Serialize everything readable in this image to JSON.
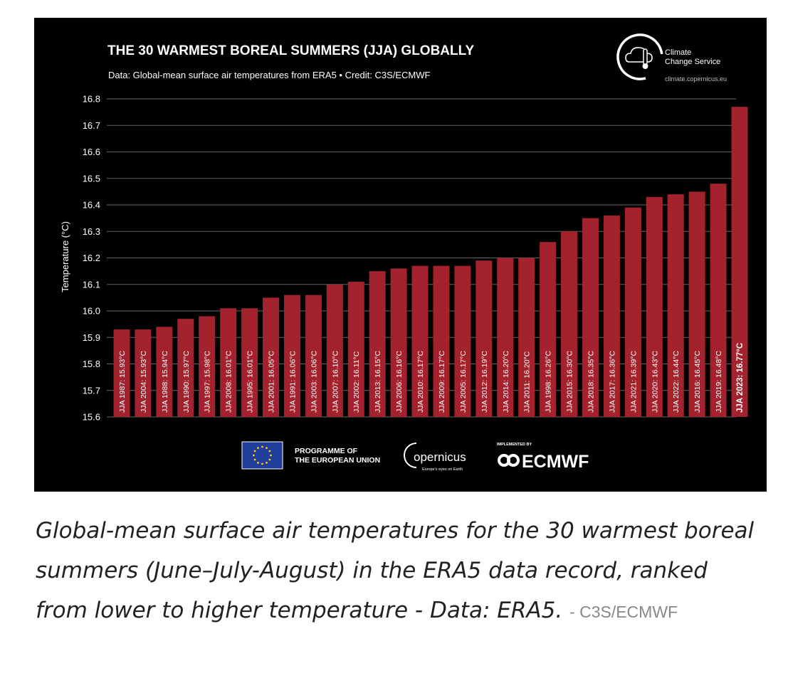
{
  "chart_data": {
    "type": "bar",
    "title": "THE 30 WARMEST BOREAL SUMMERS (JJA) GLOBALLY",
    "subtitle": "Data: Global-mean surface air temperatures from ERA5 • Credit: C3S/ECMWF",
    "ylabel": "Temperature (°C)",
    "xlabel": "",
    "ylim": [
      15.6,
      16.8
    ],
    "yticks": [
      "15.6",
      "15.7",
      "15.8",
      "15.9",
      "16.0",
      "16.1",
      "16.2",
      "16.3",
      "16.4",
      "16.5",
      "16.6",
      "16.7",
      "16.8"
    ],
    "grid": true,
    "bar_color": "#a3222d",
    "categories": [
      "JJA 1987",
      "JJA 2004",
      "JJA 1988",
      "JJA 1990",
      "JJA 1997",
      "JJA 2008",
      "JJA 1995",
      "JJA 2001",
      "JJA 1991",
      "JJA 2003",
      "JJA 2007",
      "JJA 2002",
      "JJA 2013",
      "JJA 2006",
      "JJA 2010",
      "JJA 2009",
      "JJA 2005",
      "JJA 2012",
      "JJA 2014",
      "JJA 2011",
      "JJA 1998",
      "JJA 2015",
      "JJA 2018",
      "JJA 2017",
      "JJA 2021",
      "JJA 2020",
      "JJA 2022",
      "JJA 2016",
      "JJA 2019",
      "JJA 2023"
    ],
    "values": [
      15.93,
      15.93,
      15.94,
      15.97,
      15.98,
      16.01,
      16.01,
      16.05,
      16.06,
      16.06,
      16.1,
      16.11,
      16.15,
      16.16,
      16.17,
      16.17,
      16.17,
      16.19,
      16.2,
      16.2,
      16.26,
      16.3,
      16.35,
      16.36,
      16.39,
      16.43,
      16.44,
      16.45,
      16.48,
      16.77
    ],
    "bar_labels": [
      "JJA 1987: 15.93°C",
      "JJA 2004: 15.93°C",
      "JJA 1988: 15.94°C",
      "JJA 1990: 15.97°C",
      "JJA 1997: 15.98°C",
      "JJA 2008: 16.01°C",
      "JJA 1995: 16.01°C",
      "JJA 2001: 16.05°C",
      "JJA 1991: 16.06°C",
      "JJA 2003: 16.06°C",
      "JJA 2007: 16.10°C",
      "JJA 2002: 16.11°C",
      "JJA 2013: 16.15°C",
      "JJA 2006: 16.16°C",
      "JJA 2010: 16.17°C",
      "JJA 2009: 16.17°C",
      "JJA 2005: 16.17°C",
      "JJA 2012: 16.19°C",
      "JJA 2014: 16.20°C",
      "JJA 2011: 16.20°C",
      "JJA 1998: 16.26°C",
      "JJA 2015: 16.30°C",
      "JJA 2018: 16.35°C",
      "JJA 2017: 16.36°C",
      "JJA 2021: 16.39°C",
      "JJA 2020: 16.43°C",
      "JJA 2022: 16.44°C",
      "JJA 2016: 16.45°C",
      "JJA 2019: 16.48°C",
      "JJA 2023: 16.77°C"
    ],
    "highlight_index": 29
  },
  "header_logo": {
    "line1": "Climate",
    "line2": "Change Service",
    "url": "climate.copernicus.eu"
  },
  "footer": {
    "eu_line1": "PROGRAMME OF",
    "eu_line2": "THE EUROPEAN UNION",
    "copernicus": "opernicus",
    "copernicus_tagline": "Europe's eyes on Earth",
    "implemented_by": "IMPLEMENTED BY",
    "ecmwf": "ECMWF"
  },
  "caption": {
    "text": "Global-mean surface air temperatures for the 30 warmest boreal summers (June–July-August) in the ERA5 data record, ranked from lower to higher temperature - Data: ERA5.",
    "credit": "- C3S/ECMWF"
  },
  "colors": {
    "background": "#000000",
    "bar": "#a3222d",
    "grid": "#666666",
    "text": "#ffffff",
    "eu_blue": "#1f3d99",
    "eu_star": "#ffd200"
  }
}
